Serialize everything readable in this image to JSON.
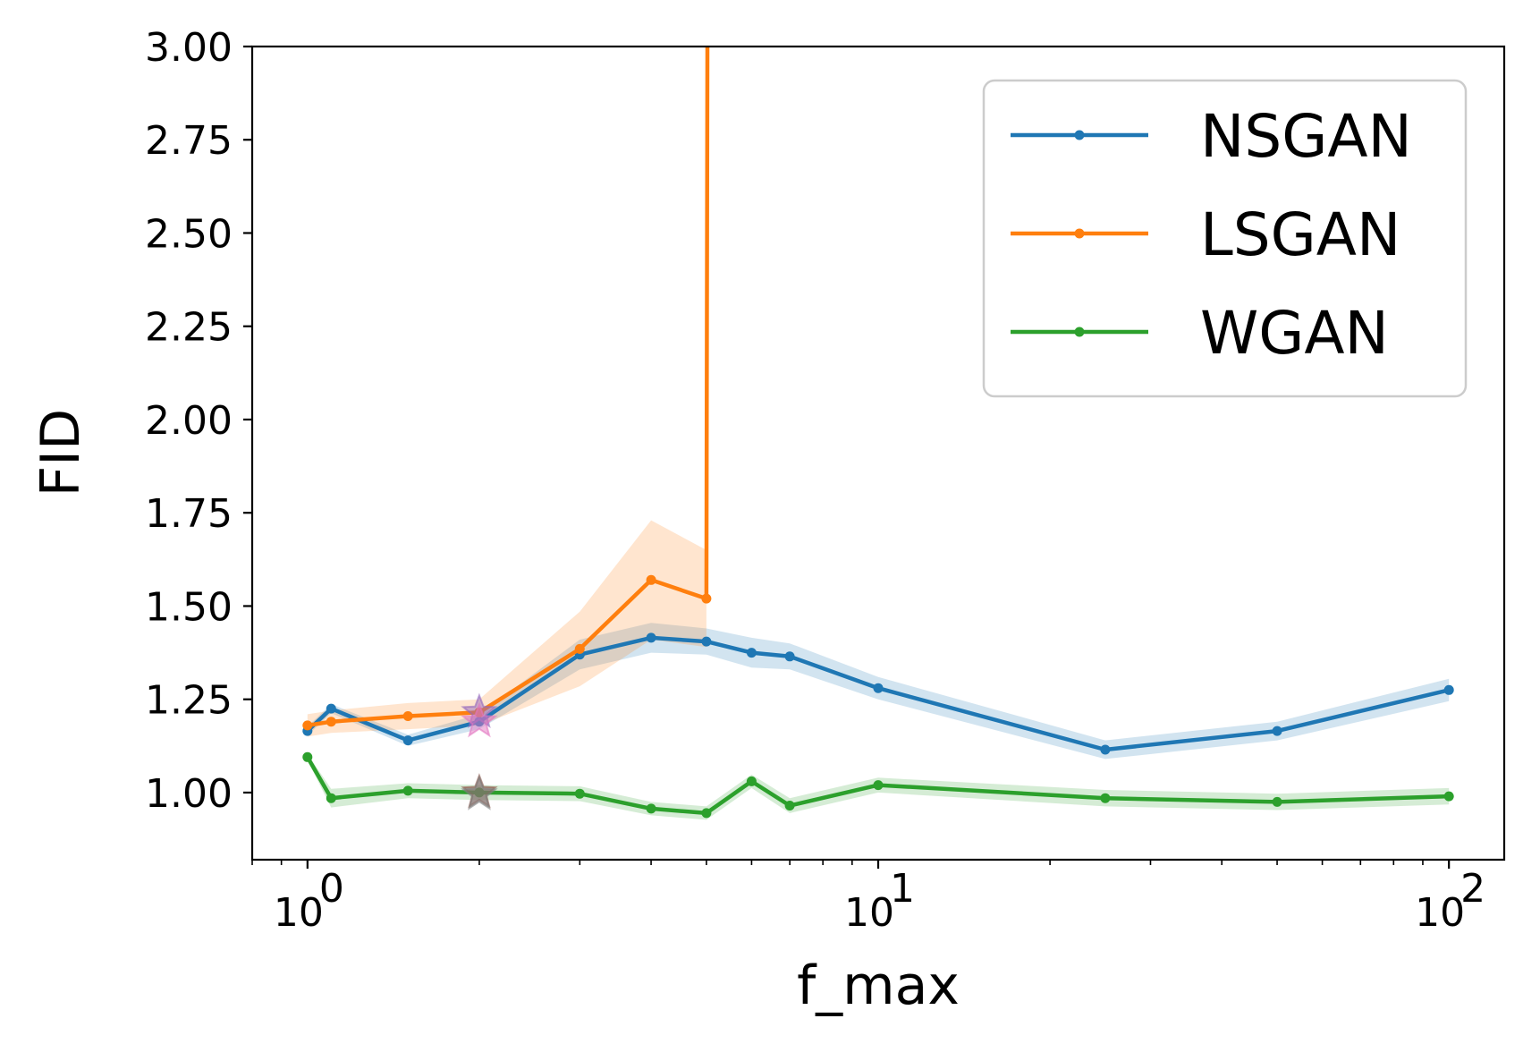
{
  "chart_data": {
    "type": "line",
    "title": "",
    "xlabel": "f_max",
    "ylabel": "FID",
    "xscale": "log",
    "xlim": [
      0.8,
      125
    ],
    "ylim": [
      0.82,
      3.0
    ],
    "x_major_ticks": [
      {
        "value": 1,
        "base": "10",
        "exp": "0"
      },
      {
        "value": 10,
        "base": "10",
        "exp": "1"
      },
      {
        "value": 100,
        "base": "10",
        "exp": "2"
      }
    ],
    "y_ticks": [
      {
        "value": 1.0,
        "label": "1.00"
      },
      {
        "value": 1.25,
        "label": "1.25"
      },
      {
        "value": 1.5,
        "label": "1.50"
      },
      {
        "value": 1.75,
        "label": "1.75"
      },
      {
        "value": 2.0,
        "label": "2.00"
      },
      {
        "value": 2.25,
        "label": "2.25"
      },
      {
        "value": 2.5,
        "label": "2.50"
      },
      {
        "value": 2.75,
        "label": "2.75"
      },
      {
        "value": 3.0,
        "label": "3.00"
      }
    ],
    "grid": false,
    "legend_position": "top-right",
    "series": [
      {
        "name": "NSGAN",
        "color": "#1f77b4",
        "x": [
          1,
          1.1,
          1.5,
          2,
          3,
          4,
          5,
          6,
          7,
          10,
          25,
          50,
          100
        ],
        "y": [
          1.165,
          1.225,
          1.14,
          1.19,
          1.37,
          1.415,
          1.405,
          1.375,
          1.365,
          1.28,
          1.115,
          1.165,
          1.275
        ],
        "band": [
          0.012,
          0.012,
          0.015,
          0.02,
          0.04,
          0.04,
          0.035,
          0.04,
          0.035,
          0.03,
          0.025,
          0.025,
          0.03
        ]
      },
      {
        "name": "LSGAN",
        "color": "#ff7f0e",
        "x": [
          1,
          1.1,
          1.5,
          2,
          3,
          4,
          5,
          5.02
        ],
        "y": [
          1.18,
          1.19,
          1.205,
          1.215,
          1.385,
          1.57,
          1.52,
          3.05
        ],
        "band": [
          0.03,
          0.03,
          0.035,
          0.035,
          0.1,
          0.16,
          0.13,
          0.0
        ]
      },
      {
        "name": "WGAN",
        "color": "#2ca02c",
        "x": [
          1,
          1.1,
          1.5,
          2,
          3,
          4,
          5,
          6,
          7,
          10,
          25,
          50,
          100
        ],
        "y": [
          1.095,
          0.985,
          1.005,
          1.0,
          0.997,
          0.957,
          0.945,
          1.03,
          0.965,
          1.02,
          0.985,
          0.975,
          0.99
        ],
        "band": [
          0.008,
          0.025,
          0.02,
          0.02,
          0.02,
          0.018,
          0.018,
          0.018,
          0.02,
          0.02,
          0.022,
          0.022,
          0.022
        ]
      }
    ],
    "star_markers": [
      {
        "x": 2,
        "y": 1.215,
        "color": "#9467bd"
      },
      {
        "x": 2,
        "y": 1.19,
        "color": "#e377c2"
      },
      {
        "x": 2,
        "y": 1.0,
        "color": "#8c564b"
      },
      {
        "x": 2,
        "y": 0.995,
        "color": "#7f7f7f"
      }
    ]
  }
}
